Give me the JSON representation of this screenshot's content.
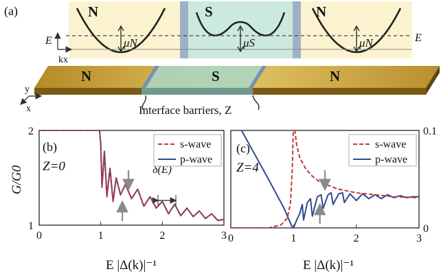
{
  "panel_labels": {
    "a": "(a)",
    "b": "(b)",
    "c": "(c)"
  },
  "schematic": {
    "region_left": "N",
    "region_middle": "S",
    "region_right": "N",
    "energy_label_left": "E",
    "energy_label_right": "E",
    "k_label": "kx",
    "mu_n_left": "μN",
    "mu_s": "μS",
    "mu_n_right": "μN",
    "slab_left": "N",
    "slab_middle": "S",
    "slab_right": "N",
    "axis_y": "y",
    "axis_x": "x",
    "barrier_caption": "Interface barriers, Z",
    "colors": {
      "normal": "#fbf3cf",
      "super": "#cce9de",
      "barrier": "#9fb1c8",
      "gold": "#c9a43a"
    }
  },
  "chart_data": [
    {
      "type": "line",
      "panel": "(b)",
      "annotation": "Z=0",
      "delta_label": "δ(E)",
      "ylabel": "G/G0",
      "xlabel": "E |Δ(k)|⁻¹",
      "xlim": [
        0,
        3
      ],
      "ylim": [
        1,
        2
      ],
      "xticks": [
        "0",
        "1",
        "2",
        "3"
      ],
      "yticks": [
        "1",
        "2"
      ],
      "series": [
        {
          "name": "s-wave",
          "style": "dashed",
          "color": "#c0393b",
          "x": [
            0,
            0.98,
            1.0,
            1.02,
            1.06,
            1.1,
            1.15,
            1.2,
            1.25,
            1.32,
            1.4,
            1.5,
            1.6,
            1.7,
            1.8,
            1.9,
            2.0,
            2.1,
            2.2,
            2.3,
            2.4,
            2.5,
            2.6,
            2.7,
            2.8,
            2.9,
            3.0
          ],
          "y": [
            2.0,
            2.0,
            1.85,
            1.4,
            1.78,
            1.3,
            1.6,
            1.25,
            1.5,
            1.32,
            1.43,
            1.28,
            1.38,
            1.2,
            1.3,
            1.18,
            1.25,
            1.12,
            1.22,
            1.1,
            1.18,
            1.09,
            1.15,
            1.07,
            1.12,
            1.05,
            1.06
          ]
        },
        {
          "name": "p-wave",
          "style": "solid",
          "color": "#2e4a8f",
          "x": [
            0,
            0.98,
            1.0,
            1.02,
            1.06,
            1.1,
            1.15,
            1.2,
            1.25,
            1.32,
            1.4,
            1.5,
            1.6,
            1.7,
            1.8,
            1.9,
            2.0,
            2.1,
            2.2,
            2.3,
            2.4,
            2.5,
            2.6,
            2.7,
            2.8,
            2.9,
            3.0
          ],
          "y": [
            2.0,
            2.0,
            1.85,
            1.4,
            1.78,
            1.3,
            1.6,
            1.25,
            1.5,
            1.32,
            1.43,
            1.28,
            1.38,
            1.2,
            1.3,
            1.18,
            1.25,
            1.12,
            1.22,
            1.1,
            1.18,
            1.09,
            1.15,
            1.07,
            1.12,
            1.05,
            1.06
          ]
        }
      ],
      "arrows": [
        {
          "x": 1.45,
          "from": "above"
        },
        {
          "x": 1.35,
          "from": "below"
        }
      ]
    },
    {
      "type": "line",
      "panel": "(c)",
      "annotation": "Z=4",
      "xlabel": "E |Δ(k)|⁻¹",
      "xlim": [
        0,
        3
      ],
      "ylim": [
        0,
        0.1
      ],
      "xticks": [
        "0",
        "1",
        "2",
        "3"
      ],
      "yticks": [
        "0",
        "0.1"
      ],
      "series": [
        {
          "name": "s-wave",
          "style": "dashed",
          "color": "#c0393b",
          "x": [
            0,
            0.6,
            0.8,
            0.9,
            0.95,
            0.98,
            1.0,
            1.02,
            1.05,
            1.1,
            1.2,
            1.3,
            1.4,
            1.5,
            1.7,
            2.0,
            2.3,
            2.6,
            3.0
          ],
          "y": [
            0.0,
            0.0,
            0.003,
            0.01,
            0.025,
            0.06,
            0.11,
            0.1,
            0.085,
            0.072,
            0.06,
            0.053,
            0.048,
            0.045,
            0.04,
            0.036,
            0.034,
            0.032,
            0.031
          ]
        },
        {
          "name": "p-wave",
          "style": "solid",
          "color": "#2e4a8f",
          "x": [
            0,
            0.3,
            0.6,
            0.85,
            0.97,
            1.0,
            1.05,
            1.1,
            1.14,
            1.16,
            1.22,
            1.27,
            1.3,
            1.38,
            1.44,
            1.47,
            1.55,
            1.6,
            1.63,
            1.72,
            1.78,
            1.81,
            1.9,
            2.0,
            2.1,
            2.2,
            2.3,
            2.4,
            2.5,
            2.6,
            2.7,
            2.8,
            2.9,
            3.0
          ],
          "y": [
            0.12,
            0.085,
            0.05,
            0.02,
            0.002,
            0.0,
            0.008,
            0.015,
            0.024,
            0.008,
            0.026,
            0.03,
            0.012,
            0.032,
            0.034,
            0.02,
            0.034,
            0.036,
            0.024,
            0.035,
            0.036,
            0.026,
            0.035,
            0.028,
            0.035,
            0.03,
            0.034,
            0.03,
            0.034,
            0.031,
            0.033,
            0.031,
            0.032,
            0.032
          ]
        }
      ],
      "arrows": [
        {
          "x": 1.5,
          "from": "above"
        },
        {
          "x": 1.42,
          "from": "below"
        }
      ]
    }
  ]
}
